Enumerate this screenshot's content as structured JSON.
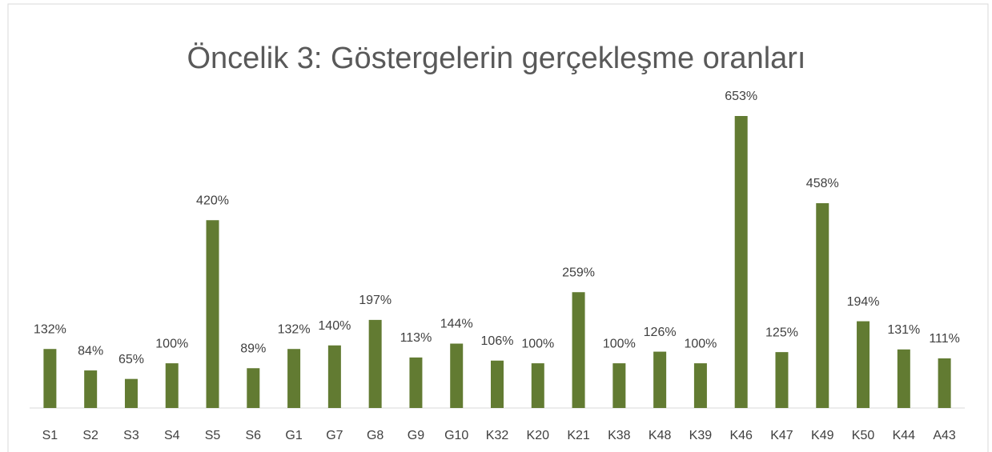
{
  "chart_data": {
    "type": "bar",
    "title": "Öncelik 3: Göstergelerin gerçekleşme oranları",
    "categories": [
      "S1",
      "S2",
      "S3",
      "S4",
      "S5",
      "S6",
      "G1",
      "G7",
      "G8",
      "G9",
      "G10",
      "K32",
      "K20",
      "K21",
      "K38",
      "K48",
      "K39",
      "K46",
      "K47",
      "K49",
      "K50",
      "K44",
      "A43"
    ],
    "values": [
      132,
      84,
      65,
      100,
      420,
      89,
      132,
      140,
      197,
      113,
      144,
      106,
      100,
      259,
      100,
      126,
      100,
      653,
      125,
      458,
      194,
      131,
      111
    ],
    "value_labels": [
      "132%",
      "84%",
      "65%",
      "100%",
      "420%",
      "89%",
      "132%",
      "140%",
      "197%",
      "113%",
      "144%",
      "106%",
      "100%",
      "259%",
      "100%",
      "126%",
      "100%",
      "653%",
      "125%",
      "458%",
      "194%",
      "131%",
      "111%"
    ],
    "color": "#627b32"
  }
}
